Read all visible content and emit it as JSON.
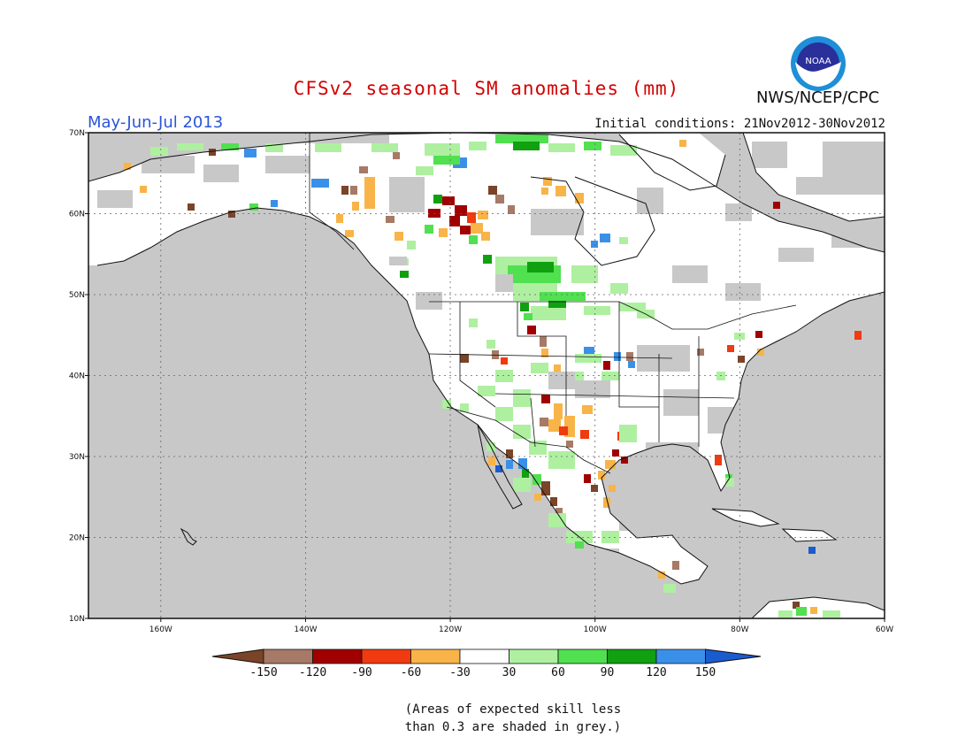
{
  "title": "CFSv2 seasonal SM anomalies (mm)",
  "period": "May-Jun-Jul 2013",
  "initial_conditions": "Initial conditions: 21Nov2012-30Nov2012",
  "organization": "NWS/NCEP/CPC",
  "logo_text": "NOAA",
  "note_line1": "(Areas of expected skill less",
  "note_line2": "than 0.3 are shaded in grey.)",
  "map": {
    "lon_range": [
      -172,
      -62
    ],
    "lat_range": [
      10,
      70
    ],
    "lat_labels": [
      "70N",
      "60N",
      "50N",
      "40N",
      "30N",
      "20N",
      "10N"
    ],
    "lon_labels": [
      "160W",
      "140W",
      "120W",
      "100W",
      "80W",
      "60W"
    ],
    "colors": {
      "background_grey": "#c8c8c8",
      "land_white": "#ffffff"
    }
  },
  "legend": {
    "ticks": [
      "-150",
      "-120",
      "-90",
      "-60",
      "-30",
      "30",
      "60",
      "90",
      "120",
      "150"
    ],
    "colors": [
      "#7a4428",
      "#a67a66",
      "#a00000",
      "#f03a10",
      "#f8b448",
      "#ffffff",
      "#aef0a0",
      "#50e050",
      "#10a010",
      "#3a90e8",
      "#1a5cd0"
    ]
  }
}
